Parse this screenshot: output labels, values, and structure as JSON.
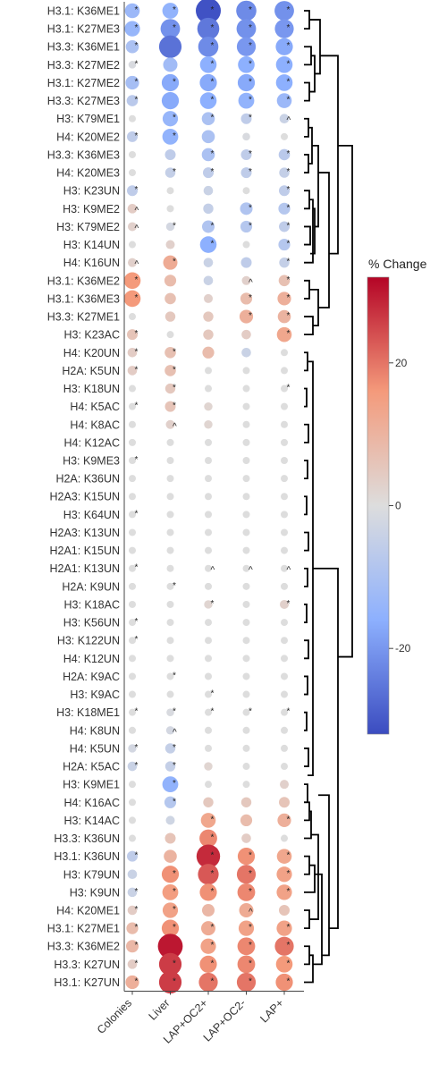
{
  "chart_data": {
    "type": "dot-heatmap",
    "columns": [
      "Colonies",
      "Liver",
      "LAP+OC2+",
      "LAP+OC2-",
      "LAP+"
    ],
    "colorbar": {
      "title": "% Change",
      "range": [
        -32,
        32
      ],
      "ticks": [
        20,
        0,
        -20
      ]
    },
    "rows": [
      {
        "label": "H3.1: K36ME1",
        "values": [
          -13,
          -15,
          -31,
          -22,
          -21
        ],
        "marks": [
          "*",
          "*",
          "*",
          "*",
          "*"
        ]
      },
      {
        "label": "H3.1: K27ME3",
        "values": [
          -14,
          -21,
          -25,
          -21,
          -20
        ],
        "marks": [
          "*",
          "*",
          "*",
          "*",
          "*"
        ]
      },
      {
        "label": "H3.3: K36ME1",
        "values": [
          -10,
          -26,
          -22,
          -20,
          -17
        ],
        "marks": [
          "*",
          "",
          "*",
          "*",
          "*"
        ]
      },
      {
        "label": "H3.3: K27ME2",
        "values": [
          -1,
          -12,
          -16,
          -16,
          -16
        ],
        "marks": [
          "*",
          "",
          "*",
          "*",
          "*"
        ]
      },
      {
        "label": "H3.1: K27ME2",
        "values": [
          -11,
          -17,
          -17,
          -17,
          -16
        ],
        "marks": [
          "*",
          "*",
          "*",
          "*",
          "*"
        ]
      },
      {
        "label": "H3.3: K27ME3",
        "values": [
          -7,
          -17,
          -16,
          -15,
          -13
        ],
        "marks": [
          "*",
          "",
          "*",
          "*",
          "*"
        ]
      },
      {
        "label": "H3: K79ME1",
        "values": [
          0,
          -14,
          -10,
          -6,
          -4
        ],
        "marks": [
          "",
          "*",
          "*",
          "*",
          "^"
        ]
      },
      {
        "label": "H4: K20ME2",
        "values": [
          -6,
          -15,
          -10,
          -1,
          0
        ],
        "marks": [
          "*",
          "*",
          "",
          "",
          ""
        ]
      },
      {
        "label": "H3.3: K36ME3",
        "values": [
          0,
          -6,
          -10,
          -6,
          -7
        ],
        "marks": [
          "",
          "",
          "*",
          "*",
          "*"
        ]
      },
      {
        "label": "H4: K20ME3",
        "values": [
          0,
          -5,
          -6,
          -6,
          -5
        ],
        "marks": [
          "",
          "*",
          "*",
          "*",
          "*"
        ]
      },
      {
        "label": "H3: K23UN",
        "values": [
          -6,
          0,
          -4,
          0,
          -6
        ],
        "marks": [
          "*",
          "",
          "",
          "",
          "*"
        ]
      },
      {
        "label": "H3: K9ME2",
        "values": [
          4,
          0,
          -5,
          -9,
          -8
        ],
        "marks": [
          "^",
          "",
          "",
          "*",
          "*"
        ]
      },
      {
        "label": "H3: K79ME2",
        "values": [
          3,
          -2,
          -9,
          -8,
          -6
        ],
        "marks": [
          "^",
          "*",
          "*",
          "*",
          "*"
        ]
      },
      {
        "label": "H3: K14UN",
        "values": [
          0,
          3,
          -16,
          0,
          -8
        ],
        "marks": [
          "",
          "",
          "*",
          "",
          "*"
        ]
      },
      {
        "label": "H4: K16UN",
        "values": [
          3,
          12,
          -4,
          -6,
          -5
        ],
        "marks": [
          "^",
          "*",
          "",
          "",
          "*"
        ]
      },
      {
        "label": "H3.1: K36ME2",
        "values": [
          16,
          8,
          -4,
          3,
          7
        ],
        "marks": [
          "*",
          "",
          "",
          "^",
          "*"
        ]
      },
      {
        "label": "H3.1: K36ME3",
        "values": [
          16,
          7,
          3,
          8,
          11
        ],
        "marks": [
          "*",
          "",
          "",
          "*",
          "*"
        ]
      },
      {
        "label": "H3.3: K27ME1",
        "values": [
          0,
          5,
          5,
          11,
          10
        ],
        "marks": [
          "",
          "",
          "",
          "*",
          "*"
        ]
      },
      {
        "label": "H3: K23AC",
        "values": [
          6,
          0,
          5,
          4,
          13
        ],
        "marks": [
          "*",
          "",
          "",
          "",
          "*"
        ]
      },
      {
        "label": "H4: K20UN",
        "values": [
          4,
          7,
          8,
          -4,
          0
        ],
        "marks": [
          "*",
          "*",
          "",
          "",
          ""
        ]
      },
      {
        "label": "H2A: K5UN",
        "values": [
          4,
          7,
          0,
          0,
          0
        ],
        "marks": [
          "*",
          "*",
          "",
          "",
          ""
        ]
      },
      {
        "label": "H3: K18UN",
        "values": [
          0,
          5,
          0,
          0,
          0
        ],
        "marks": [
          "",
          "*",
          "",
          "",
          "*"
        ]
      },
      {
        "label": "H4: K5AC",
        "values": [
          0,
          6,
          2,
          0,
          0
        ],
        "marks": [
          "*",
          "*",
          "",
          "",
          ""
        ]
      },
      {
        "label": "H4: K8AC",
        "values": [
          0,
          3,
          2,
          0,
          0
        ],
        "marks": [
          "",
          "^",
          "",
          "",
          ""
        ]
      },
      {
        "label": "H4: K12AC",
        "values": [
          0,
          0,
          0,
          0,
          0
        ],
        "marks": [
          "",
          "",
          "",
          "",
          ""
        ]
      },
      {
        "label": "H3: K9ME3",
        "values": [
          0,
          0,
          0,
          0,
          0
        ],
        "marks": [
          "*",
          "",
          "",
          "",
          ""
        ]
      },
      {
        "label": "H2A: K36UN",
        "values": [
          0,
          0,
          0,
          0,
          0
        ],
        "marks": [
          "",
          "",
          "",
          "",
          ""
        ]
      },
      {
        "label": "H2A3: K15UN",
        "values": [
          0,
          0,
          0,
          0,
          0
        ],
        "marks": [
          "",
          "",
          "",
          "",
          ""
        ]
      },
      {
        "label": "H3: K64UN",
        "values": [
          0,
          0,
          0,
          0,
          0
        ],
        "marks": [
          "*",
          "",
          "",
          "",
          ""
        ]
      },
      {
        "label": "H2A3: K13UN",
        "values": [
          0,
          0,
          0,
          0,
          0
        ],
        "marks": [
          "",
          "",
          "",
          "",
          ""
        ]
      },
      {
        "label": "H2A1: K15UN",
        "values": [
          0,
          0,
          0,
          0,
          0
        ],
        "marks": [
          "",
          "",
          "",
          "",
          ""
        ]
      },
      {
        "label": "H2A1: K13UN",
        "values": [
          0,
          0,
          0,
          0,
          0
        ],
        "marks": [
          "*",
          "",
          "^",
          "^",
          "^"
        ]
      },
      {
        "label": "H2A: K9UN",
        "values": [
          0,
          0,
          0,
          0,
          0
        ],
        "marks": [
          "",
          "*",
          "",
          "",
          ""
        ]
      },
      {
        "label": "H3: K18AC",
        "values": [
          0,
          0,
          2,
          0,
          3
        ],
        "marks": [
          "",
          "",
          "*",
          "",
          "*"
        ]
      },
      {
        "label": "H3: K56UN",
        "values": [
          0,
          0,
          0,
          0,
          0
        ],
        "marks": [
          "*",
          "",
          "",
          "",
          ""
        ]
      },
      {
        "label": "H3: K122UN",
        "values": [
          0,
          0,
          0,
          0,
          0
        ],
        "marks": [
          "*",
          "",
          "",
          "",
          ""
        ]
      },
      {
        "label": "H4: K12UN",
        "values": [
          0,
          0,
          0,
          0,
          0
        ],
        "marks": [
          "",
          "",
          "",
          "",
          ""
        ]
      },
      {
        "label": "H2A: K9AC",
        "values": [
          0,
          0,
          0,
          0,
          0
        ],
        "marks": [
          "",
          "*",
          "",
          "",
          ""
        ]
      },
      {
        "label": "H3: K9AC",
        "values": [
          0,
          0,
          0,
          0,
          0
        ],
        "marks": [
          "",
          "",
          "*",
          "",
          ""
        ]
      },
      {
        "label": "H3: K18ME1",
        "values": [
          0,
          -1,
          0,
          0,
          0
        ],
        "marks": [
          "*",
          "*",
          "*",
          "*",
          "*"
        ]
      },
      {
        "label": "H4: K8UN",
        "values": [
          0,
          -2,
          0,
          0,
          0
        ],
        "marks": [
          "",
          "^",
          "",
          "",
          ""
        ]
      },
      {
        "label": "H4: K5UN",
        "values": [
          -2,
          -5,
          0,
          0,
          0
        ],
        "marks": [
          "*",
          "*",
          "",
          "",
          ""
        ]
      },
      {
        "label": "H2A: K5AC",
        "values": [
          -4,
          -5,
          2,
          0,
          0
        ],
        "marks": [
          "*",
          "*",
          "",
          "",
          ""
        ]
      },
      {
        "label": "H3: K9ME1",
        "values": [
          0,
          -15,
          0,
          0,
          3
        ],
        "marks": [
          "",
          "*",
          "",
          "",
          ""
        ]
      },
      {
        "label": "H4: K16AC",
        "values": [
          0,
          -8,
          5,
          5,
          6
        ],
        "marks": [
          "",
          "*",
          "",
          "",
          ""
        ]
      },
      {
        "label": "H3: K14AC",
        "values": [
          0,
          -3,
          13,
          8,
          11
        ],
        "marks": [
          "",
          "",
          "*",
          "",
          "*"
        ]
      },
      {
        "label": "H3.3: K36UN",
        "values": [
          0,
          6,
          18,
          4,
          0
        ],
        "marks": [
          "",
          "",
          "*",
          "",
          ""
        ]
      },
      {
        "label": "H3.1: K36UN",
        "values": [
          -6,
          10,
          28,
          17,
          13
        ],
        "marks": [
          "*",
          "",
          "*",
          "*",
          "*"
        ]
      },
      {
        "label": "H3: K79UN",
        "values": [
          -4,
          17,
          23,
          20,
          14
        ],
        "marks": [
          "",
          "*",
          "*",
          "*",
          "*"
        ]
      },
      {
        "label": "H3: K9UN",
        "values": [
          -4,
          15,
          17,
          18,
          14
        ],
        "marks": [
          "*",
          "*",
          "*",
          "*",
          "*"
        ]
      },
      {
        "label": "H4: K20ME1",
        "values": [
          4,
          14,
          9,
          12,
          6
        ],
        "marks": [
          "*",
          "*",
          "",
          "^",
          ""
        ]
      },
      {
        "label": "H3.1: K27ME1",
        "values": [
          8,
          17,
          12,
          14,
          14
        ],
        "marks": [
          "*",
          "*",
          "*",
          "*",
          "*"
        ]
      },
      {
        "label": "H3.3: K36ME2",
        "values": [
          9,
          30,
          14,
          18,
          20
        ],
        "marks": [
          "*",
          "",
          "*",
          "*",
          "*"
        ]
      },
      {
        "label": "H3.3: K27UN",
        "values": [
          4,
          26,
          17,
          18,
          16
        ],
        "marks": [
          "*",
          "*",
          "*",
          "*",
          "*"
        ]
      },
      {
        "label": "H3.1: K27UN",
        "values": [
          11,
          26,
          20,
          20,
          17
        ],
        "marks": [
          "*",
          "*",
          "*",
          "*",
          "*"
        ]
      }
    ]
  }
}
